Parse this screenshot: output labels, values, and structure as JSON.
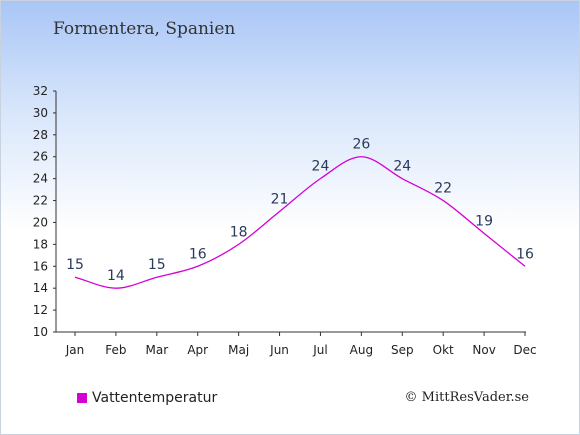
{
  "title": "Formentera, Spanien",
  "legend_label": "Vattentemperatur",
  "credit": "© MittResVader.se",
  "colors": {
    "line": "#d400d4",
    "axis": "#333333",
    "text": "#2a3a5c"
  },
  "chart_data": {
    "type": "line",
    "title": "Formentera, Spanien",
    "categories": [
      "Jan",
      "Feb",
      "Mar",
      "Apr",
      "Maj",
      "Jun",
      "Jul",
      "Aug",
      "Sep",
      "Okt",
      "Nov",
      "Dec"
    ],
    "series": [
      {
        "name": "Vattentemperatur",
        "values": [
          15,
          14,
          15,
          16,
          18,
          21,
          24,
          26,
          24,
          22,
          19,
          16
        ]
      }
    ],
    "ylim": [
      10,
      32
    ],
    "yticks": [
      10,
      12,
      14,
      16,
      18,
      20,
      22,
      24,
      26,
      28,
      30,
      32
    ],
    "grid": false,
    "legend": "bottom-left"
  }
}
